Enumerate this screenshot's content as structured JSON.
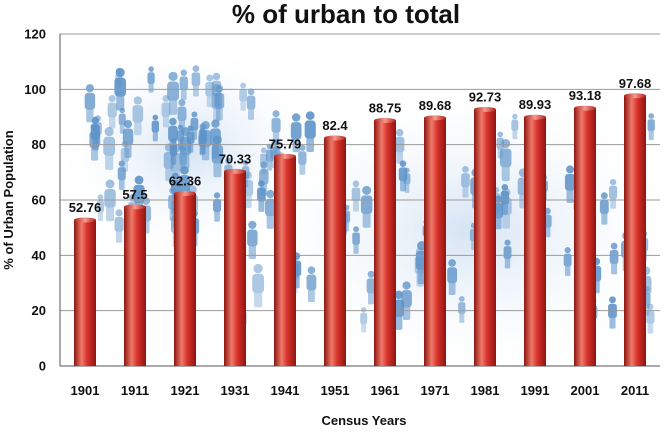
{
  "chart_data": {
    "type": "bar",
    "title": "% of urban to total",
    "xlabel": "Census Years",
    "ylabel": "% of Urban Population",
    "categories": [
      "1901",
      "1911",
      "1921",
      "1931",
      "1941",
      "1951",
      "1961",
      "1971",
      "1981",
      "1991",
      "2001",
      "2011"
    ],
    "values": [
      52.76,
      57.5,
      62.36,
      70.33,
      75.79,
      82.4,
      88.75,
      89.68,
      92.73,
      89.93,
      93.18,
      97.68
    ],
    "data_labels": [
      "52.76",
      "57.5",
      "62.36",
      "70.33",
      "75.79",
      "82.4",
      "88.75",
      "89.68",
      "92.73",
      "89.93",
      "93.18",
      "97.68"
    ],
    "ylim": [
      0,
      120
    ],
    "yticks": [
      0,
      20,
      40,
      60,
      80,
      100,
      120
    ],
    "grid": true,
    "bar_color": "#d8332b",
    "bar_highlight": "#f07a6a",
    "bar_shadow": "#8e1510",
    "background_art": "crowd-of-people"
  }
}
